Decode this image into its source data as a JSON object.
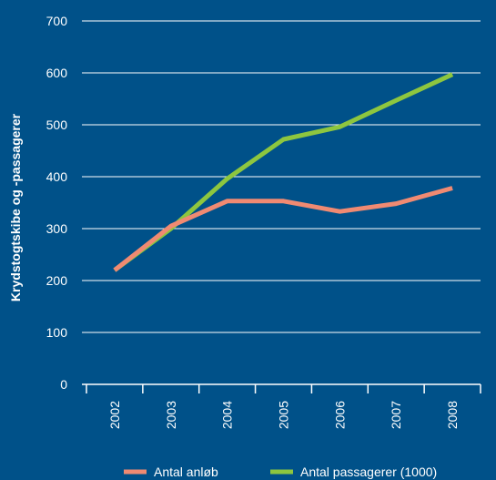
{
  "colors": {
    "background": "#005189",
    "gridline": "#ffffff",
    "text": "#ffffff"
  },
  "chart_data": {
    "type": "line",
    "title": "",
    "xlabel": "",
    "ylabel": "Krydstogtskibe og -passagerer",
    "categories": [
      "2002",
      "2003",
      "2004",
      "2005",
      "2006",
      "2007",
      "2008"
    ],
    "ylim": [
      0,
      700
    ],
    "yticks": [
      0,
      100,
      200,
      300,
      400,
      500,
      600,
      700
    ],
    "grid": true,
    "legend_position": "bottom",
    "series": [
      {
        "name": "Antal anløb",
        "color": "#F08A72",
        "values": [
          220,
          305,
          353,
          353,
          333,
          348,
          378
        ]
      },
      {
        "name": "Antal passagerer (1000)",
        "color": "#8DC63F",
        "values": [
          220,
          300,
          396,
          472,
          496,
          547,
          597
        ]
      }
    ]
  }
}
